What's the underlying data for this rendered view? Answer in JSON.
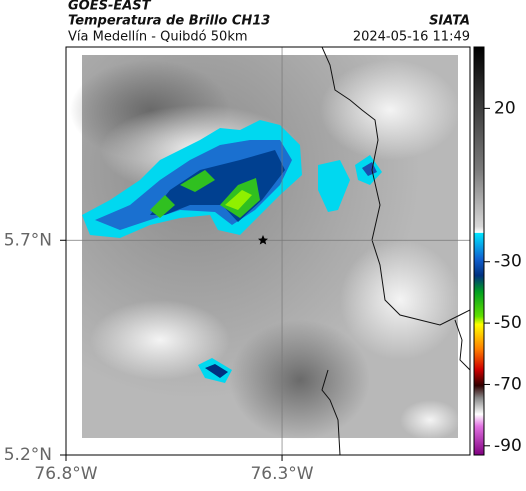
{
  "header": {
    "source": "GOES-EAST",
    "product": "Temperatura de Brillo CH13",
    "organization": "SIATA",
    "route": "Vía Medellín - Quibdó 50km",
    "timestamp": "2024-05-16 11:49"
  },
  "map": {
    "xlim": [
      -76.8,
      -75.865
    ],
    "ylim": [
      5.2,
      6.15
    ],
    "xticks": [
      {
        "value": -76.8,
        "label": "76.8°W"
      },
      {
        "value": -76.3,
        "label": "76.3°W"
      }
    ],
    "yticks": [
      {
        "value": 5.7,
        "label": "5.7°N"
      },
      {
        "value": 5.2,
        "label": "5.2°N"
      }
    ],
    "grid": true
  },
  "colorbar": {
    "lim": [
      -93,
      40
    ],
    "ticks": [
      20,
      -30,
      -50,
      -70,
      -90
    ]
  }
}
